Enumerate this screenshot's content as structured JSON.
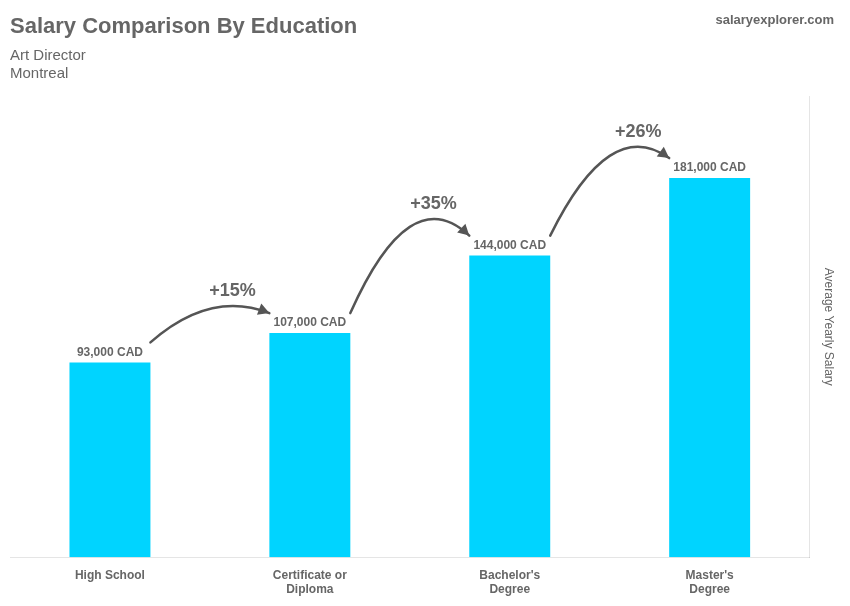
{
  "chart_data": {
    "type": "bar",
    "title": "Salary Comparison By Education",
    "subtitle": [
      "Art Director",
      "Montreal"
    ],
    "watermark": "salaryexplorer.com",
    "ylabel": "Average Yearly Salary",
    "categories": [
      "High School",
      "Certificate or\nDiploma",
      "Bachelor's\nDegree",
      "Master's\nDegree"
    ],
    "values": [
      93000,
      107000,
      144000,
      181000
    ],
    "value_labels": [
      "93,000 CAD",
      "107,000 CAD",
      "144,000 CAD",
      "181,000 CAD"
    ],
    "data_labels": true,
    "annotations": [
      "+15%",
      "+35%",
      "+26%"
    ],
    "color": "#00D4FF",
    "ylim": [
      0,
      220000
    ],
    "grid": false,
    "tick_labels": "x"
  }
}
